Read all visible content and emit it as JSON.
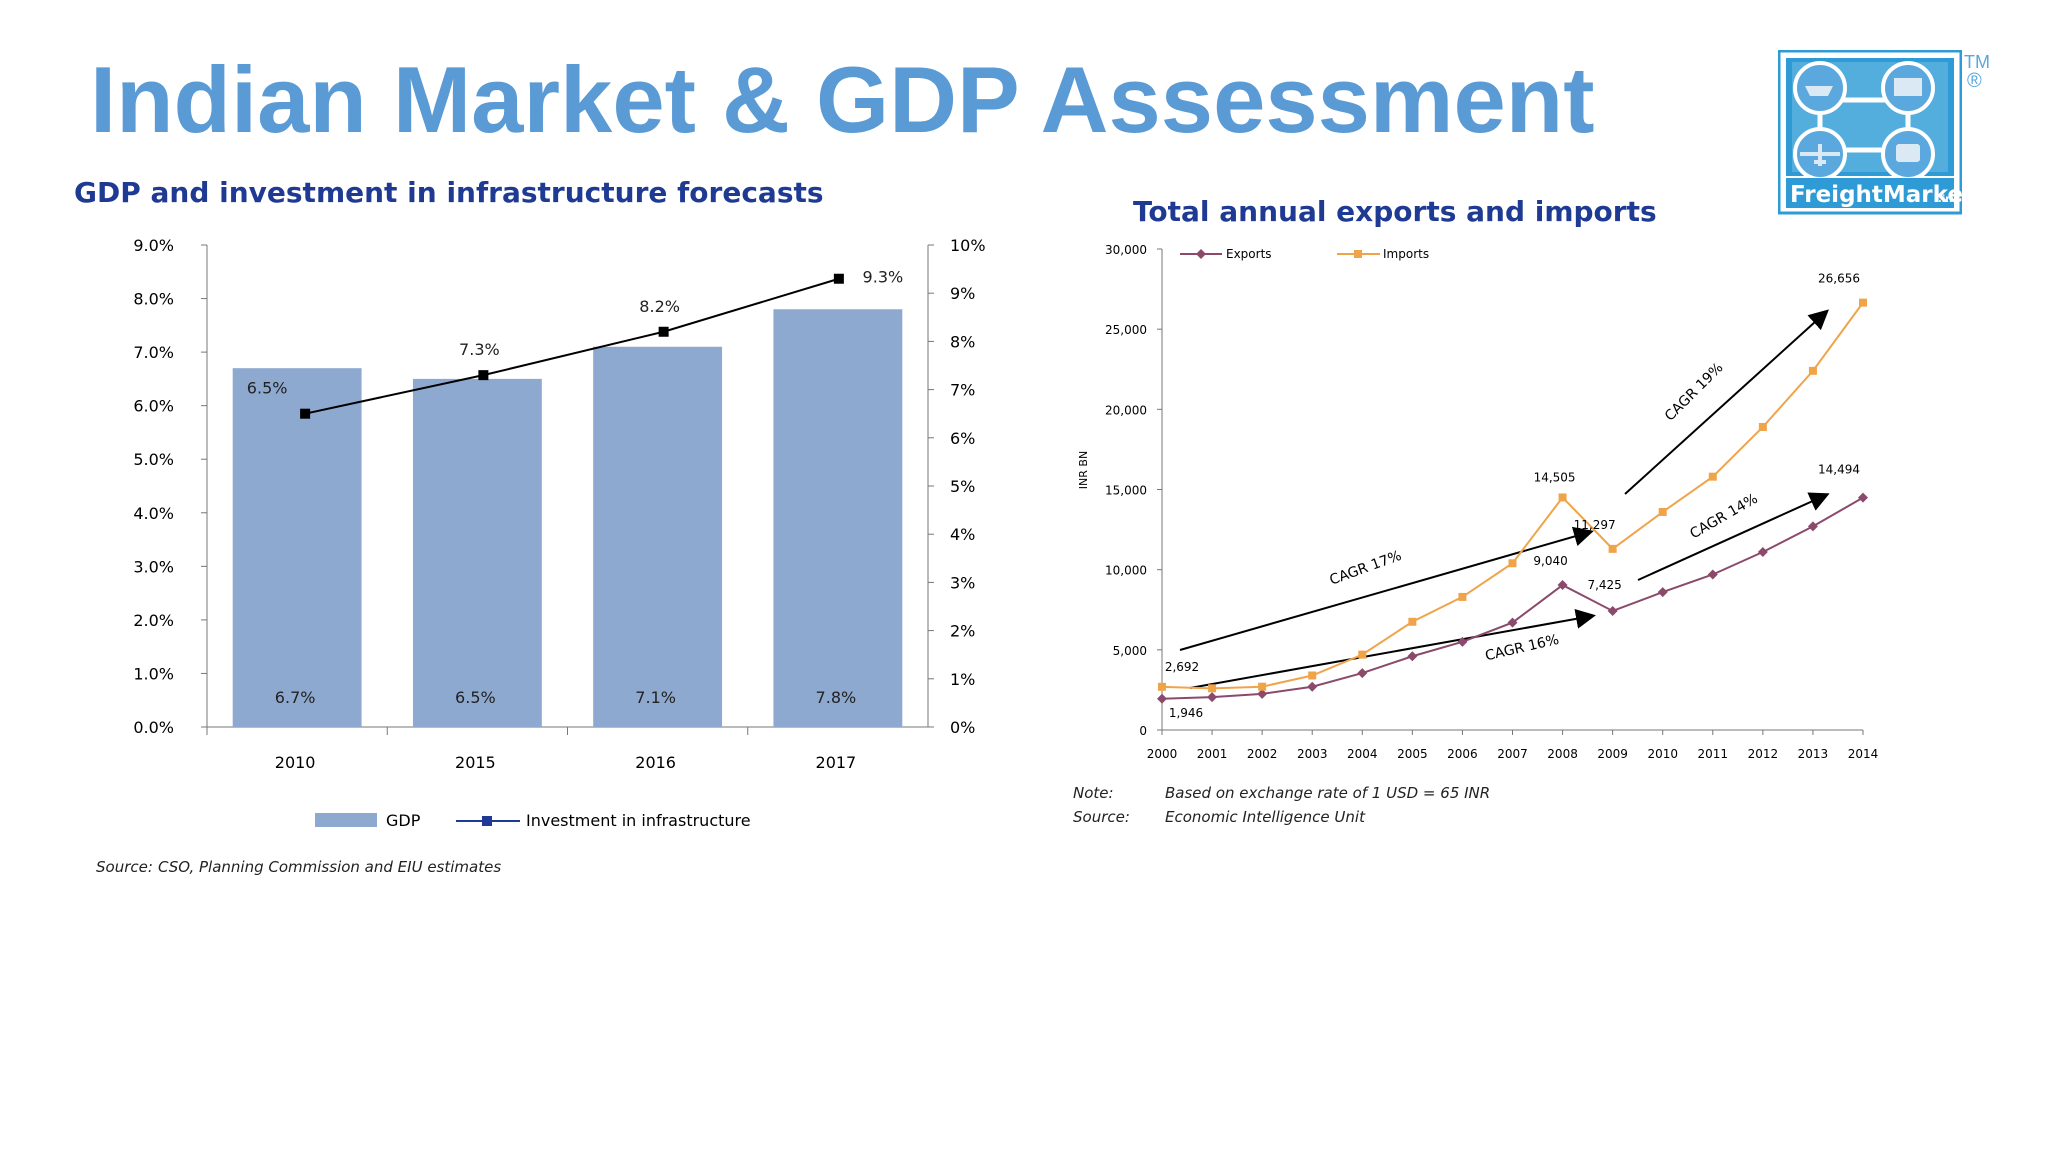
{
  "page": {
    "title": "Indian Market & GDP Assessment",
    "brand": "FreightMarket",
    "brand_suffix": ".in",
    "trademark": "TM",
    "registered": "®"
  },
  "left_panel": {
    "heading": "GDP and investment in infrastructure forecasts",
    "source_label": "Source:",
    "source_text": "CSO, Planning Commission and EIU estimates"
  },
  "right_panel": {
    "heading": "Total annual exports and imports",
    "note_label": "Note:",
    "note_text": "Based on exchange rate of 1 USD = 65 INR",
    "source_label": "Source:",
    "source_text": "Economic Intelligence Unit"
  },
  "chart_data": [
    {
      "type": "bar",
      "categories": [
        "2010",
        "2015",
        "2016",
        "2017"
      ],
      "series": [
        {
          "name": "GDP",
          "kind": "bar",
          "axis": "left",
          "values": [
            6.7,
            6.5,
            7.1,
            7.8
          ],
          "labels": [
            "6.7%",
            "6.5%",
            "7.1%",
            "7.8%"
          ],
          "color": "#8ea9cf"
        },
        {
          "name": "Investment in infrastructure",
          "kind": "line",
          "axis": "right",
          "values": [
            6.5,
            7.3,
            8.2,
            9.3
          ],
          "labels": [
            "6.5%",
            "7.3%",
            "8.2%",
            "9.3%"
          ],
          "color": "#000000"
        }
      ],
      "left_axis": {
        "ylim": [
          0,
          9
        ],
        "ticks": [
          "0.0%",
          "1.0%",
          "2.0%",
          "3.0%",
          "4.0%",
          "5.0%",
          "6.0%",
          "7.0%",
          "8.0%",
          "9.0%"
        ]
      },
      "right_axis": {
        "ylim": [
          0,
          10
        ],
        "ticks": [
          "0%",
          "1%",
          "2%",
          "3%",
          "4%",
          "5%",
          "6%",
          "7%",
          "8%",
          "9%",
          "10%"
        ]
      },
      "legend_position": "bottom",
      "grid": false
    },
    {
      "type": "line",
      "x": [
        "2000",
        "2001",
        "2002",
        "2003",
        "2004",
        "2005",
        "2006",
        "2007",
        "2008",
        "2009",
        "2010",
        "2011",
        "2012",
        "2013",
        "2014"
      ],
      "series": [
        {
          "name": "Exports",
          "values": [
            1946,
            2050,
            2250,
            2700,
            3550,
            4600,
            5500,
            6700,
            9040,
            7425,
            8600,
            9700,
            11100,
            12700,
            14494
          ],
          "color": "#8b4a6b",
          "marker": "diamond"
        },
        {
          "name": "Imports",
          "values": [
            2692,
            2600,
            2700,
            3400,
            4700,
            6750,
            8300,
            10400,
            14505,
            11297,
            13600,
            15800,
            18900,
            22400,
            26656
          ],
          "color": "#f0a44a",
          "marker": "square"
        }
      ],
      "point_labels": [
        {
          "series": "Exports",
          "x": "2000",
          "text": "1,946"
        },
        {
          "series": "Imports",
          "x": "2000",
          "text": "2,692"
        },
        {
          "series": "Exports",
          "x": "2008",
          "text": "9,040"
        },
        {
          "series": "Imports",
          "x": "2008",
          "text": "14,505"
        },
        {
          "series": "Exports",
          "x": "2009",
          "text": "7,425"
        },
        {
          "series": "Imports",
          "x": "2009",
          "text": "11,297"
        },
        {
          "series": "Exports",
          "x": "2014",
          "text": "14,494"
        },
        {
          "series": "Imports",
          "x": "2014",
          "text": "26,656"
        }
      ],
      "annotations": [
        "CAGR 17%",
        "CAGR 16%",
        "CAGR 19%",
        "CAGR 14%"
      ],
      "ylabel": "INR BN",
      "ylim": [
        0,
        30000
      ],
      "y_ticks": [
        "0",
        "5,000",
        "10,000",
        "15,000",
        "20,000",
        "25,000",
        "30,000"
      ],
      "legend_position": "top-left",
      "grid": false
    }
  ]
}
